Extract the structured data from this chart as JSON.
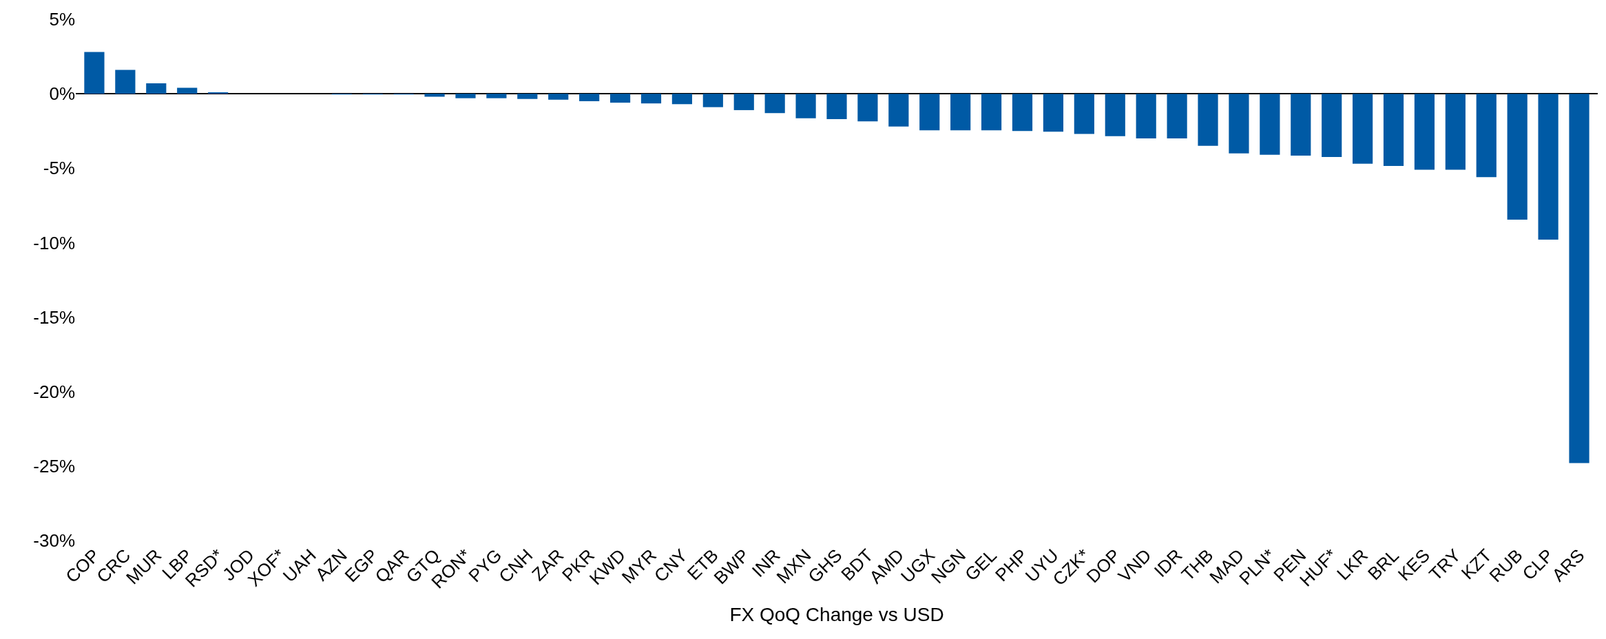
{
  "chart_data": {
    "type": "bar",
    "xlabel": "FX QoQ Change vs USD",
    "categories": [
      "COP",
      "CRC",
      "MUR",
      "LBP",
      "RSD*",
      "JOD",
      "XOF*",
      "UAH",
      "AZN",
      "EGP",
      "QAR",
      "GTQ",
      "RON*",
      "PYG",
      "CNH",
      "ZAR",
      "PKR",
      "KWD",
      "MYR",
      "CNY",
      "ETB",
      "BWP",
      "INR",
      "MXN",
      "GHS",
      "BDT",
      "AMD",
      "UGX",
      "NGN",
      "GEL",
      "PHP",
      "UYU",
      "CZK*",
      "DOP",
      "VND",
      "IDR",
      "THB",
      "MAD",
      "PLN*",
      "PEN",
      "HUF*",
      "LKR",
      "BRL",
      "KES",
      "TRY",
      "KZT",
      "RUB",
      "CLP",
      "ARS"
    ],
    "values": [
      2.8,
      1.6,
      0.7,
      0.4,
      0.1,
      0,
      0,
      0,
      -0.05,
      -0.05,
      -0.05,
      -0.2,
      -0.3,
      -0.3,
      -0.35,
      -0.4,
      -0.5,
      -0.6,
      -0.65,
      -0.7,
      -0.9,
      -1.1,
      -1.3,
      -1.65,
      -1.7,
      -1.85,
      -2.2,
      -2.45,
      -2.45,
      -2.45,
      -2.5,
      -2.55,
      -2.7,
      -2.85,
      -3.0,
      -3.0,
      -3.5,
      -4.0,
      -4.1,
      -4.15,
      -4.25,
      -4.7,
      -4.85,
      -5.1,
      -5.1,
      -5.6,
      -8.45,
      -9.8,
      -24.8
    ],
    "color": "#005aa5",
    "ylim": [
      -30,
      5
    ],
    "yticks": [
      {
        "value": 5,
        "label": "5%"
      },
      {
        "value": 0,
        "label": "0%"
      },
      {
        "value": -5,
        "label": "-5%"
      },
      {
        "value": -10,
        "label": "-10%"
      },
      {
        "value": -15,
        "label": "-15%"
      },
      {
        "value": -20,
        "label": "-20%"
      },
      {
        "value": -25,
        "label": "-25%"
      },
      {
        "value": -30,
        "label": "-30%"
      }
    ],
    "tick_labels": "xy"
  }
}
